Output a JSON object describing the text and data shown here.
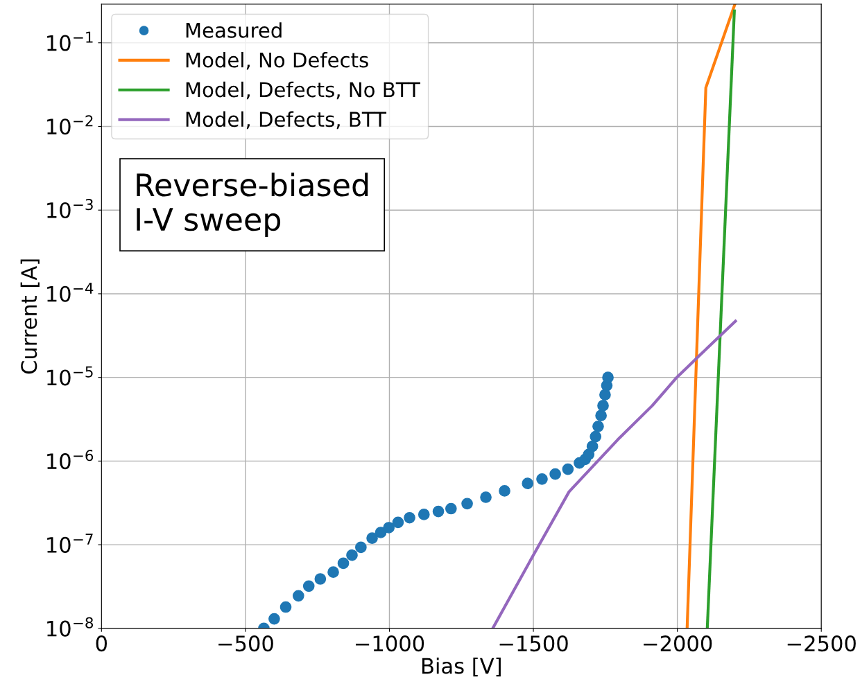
{
  "chart_data": {
    "type": "line",
    "xlabel": "Bias [V]",
    "ylabel": "Current [A]",
    "log": "y",
    "grid": true,
    "legend": "top left",
    "xlim": [
      0,
      -2500
    ],
    "xticks": [
      0,
      {
        "value": -500,
        "label": "−500"
      },
      {
        "value": -1000,
        "label": "−1000"
      },
      {
        "value": -1500,
        "label": "−1500"
      },
      {
        "value": -2000,
        "label": "−2000"
      },
      {
        "value": -2500,
        "label": "−2500"
      }
    ],
    "ylim": [
      1e-08,
      0.29
    ],
    "yticks": [
      {
        "value": 1e-08,
        "label": "10$^{−8}$"
      },
      {
        "value": 1e-07,
        "label": "10$^{−7}$"
      },
      {
        "value": 1e-06,
        "label": "10$^{−6}$"
      },
      {
        "value": 1e-05,
        "label": "10$^{−5}$"
      },
      {
        "value": 0.0001,
        "label": "10$^{−4}$"
      },
      {
        "value": 0.001,
        "label": "10$^{−3}$"
      },
      {
        "value": 0.01,
        "label": "10$^{−2}$"
      },
      {
        "value": 0.1,
        "label": "10$^{−1}$"
      }
    ],
    "annotations": [
      "Reverse-biased\nI-V sweep"
    ],
    "series": [
      {
        "name": "Measured",
        "type": "scatter",
        "marker": "circle",
        "color": "#1f77b4",
        "x": [
          -564,
          -600,
          -640,
          -684,
          -720,
          -760,
          -805,
          -840,
          -870,
          -901,
          -940,
          -970,
          -998,
          -1030,
          -1070,
          -1120,
          -1170,
          -1214,
          -1270,
          -1335,
          -1400,
          -1480,
          -1530,
          -1576,
          -1620,
          -1660,
          -1680,
          -1692,
          -1705,
          -1716,
          -1725,
          -1735,
          -1742,
          -1749,
          -1755,
          -1759
        ],
        "values": [
          1e-08,
          1.3e-08,
          1.8e-08,
          2.45e-08,
          3.2e-08,
          3.9e-08,
          4.7e-08,
          6e-08,
          7.5e-08,
          9.3e-08,
          1.2e-07,
          1.4e-07,
          1.6e-07,
          1.85e-07,
          2.1e-07,
          2.3e-07,
          2.5e-07,
          2.7e-07,
          3.1e-07,
          3.7e-07,
          4.4e-07,
          5.4e-07,
          6.1e-07,
          7e-07,
          8e-07,
          9.5e-07,
          1.05e-06,
          1.2e-06,
          1.5e-06,
          1.96e-06,
          2.6e-06,
          3.5e-06,
          4.6e-06,
          6.2e-06,
          8e-06,
          1e-05
        ]
      },
      {
        "name": "Model, No Defects",
        "color": "#ff7f0e",
        "x": [
          -2034,
          -2099,
          -2200
        ],
        "values": [
          1e-08,
          0.029,
          0.29
        ]
      },
      {
        "name": "Model, Defects, No BTT",
        "color": "#2ca02c",
        "x": [
          -2104,
          -2198
        ],
        "values": [
          1e-08,
          0.24
        ]
      },
      {
        "name": "Model, Defects, BTT",
        "color": "#9467bd",
        "x": [
          -1359,
          -1494,
          -1624,
          -1793,
          -1913,
          -1998,
          -2082,
          -2202
        ],
        "values": [
          1e-08,
          6.9e-08,
          4.3e-07,
          1.8e-06,
          4.6e-06,
          1e-05,
          1.9e-05,
          4.7e-05
        ]
      }
    ]
  }
}
